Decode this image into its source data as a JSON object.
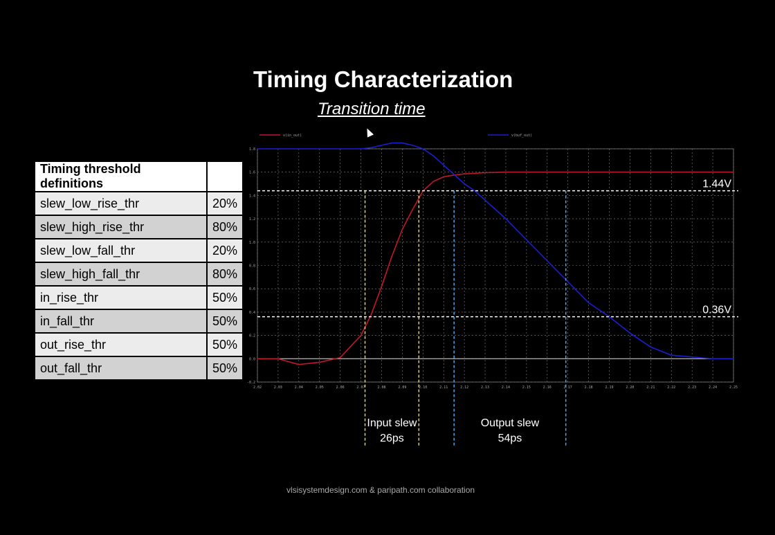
{
  "title": "Timing Characterization",
  "subtitle": "Transition time",
  "footer": "vlsisystemdesign.com & paripath.com collaboration",
  "threshold_table": {
    "header": "Timing threshold definitions",
    "rows": [
      {
        "name": "slew_low_rise_thr",
        "value": "20%"
      },
      {
        "name": "slew_high_rise_thr",
        "value": "80%"
      },
      {
        "name": "slew_low_fall_thr",
        "value": "20%"
      },
      {
        "name": "slew_high_fall_thr",
        "value": "80%"
      },
      {
        "name": "in_rise_thr",
        "value": "50%"
      },
      {
        "name": "in_fall_thr",
        "value": "50%"
      },
      {
        "name": "out_rise_thr",
        "value": "50%"
      },
      {
        "name": "out_fall_thr",
        "value": "50%"
      }
    ]
  },
  "chart_data": {
    "type": "line",
    "title": "",
    "xlabel": "",
    "ylabel": "",
    "xlim": [
      2.02,
      2.25
    ],
    "ylim": [
      -0.2,
      1.8
    ],
    "grid": true,
    "x_ticks": [
      "2.02",
      "2.03",
      "2.04",
      "2.05",
      "2.06",
      "2.07",
      "2.08",
      "2.09",
      "2.10",
      "2.11",
      "2.12",
      "2.13",
      "2.14",
      "2.15",
      "2.16",
      "2.17",
      "2.18",
      "2.19",
      "2.20",
      "2.21",
      "2.22",
      "2.23",
      "2.24",
      "2.25"
    ],
    "y_ticks": [
      "1.8",
      "1.6",
      "1.4",
      "1.2",
      "1.0",
      "0.8",
      "0.6",
      "0.4",
      "0.2",
      "0.0",
      "-0.2"
    ],
    "legend": [
      "v(in_out)",
      "v(buf_out)"
    ],
    "series": [
      {
        "name": "v(in_out)",
        "color": "#c0182a",
        "x": [
          2.02,
          2.03,
          2.04,
          2.05,
          2.06,
          2.07,
          2.075,
          2.08,
          2.085,
          2.09,
          2.095,
          2.1,
          2.105,
          2.11,
          2.115,
          2.12,
          2.125,
          2.13,
          2.14,
          2.15,
          2.16,
          2.17,
          2.18,
          2.19,
          2.2,
          2.22,
          2.25
        ],
        "y": [
          0.0,
          0.0,
          -0.05,
          -0.03,
          0.01,
          0.2,
          0.38,
          0.62,
          0.88,
          1.11,
          1.28,
          1.44,
          1.52,
          1.56,
          1.575,
          1.585,
          1.59,
          1.595,
          1.6,
          1.6,
          1.6,
          1.6,
          1.6,
          1.6,
          1.6,
          1.6,
          1.6
        ]
      },
      {
        "name": "v(buf_out)",
        "color": "#1a1fd0",
        "x": [
          2.02,
          2.04,
          2.05,
          2.06,
          2.07,
          2.075,
          2.08,
          2.085,
          2.09,
          2.095,
          2.1,
          2.105,
          2.11,
          2.115,
          2.12,
          2.125,
          2.13,
          2.14,
          2.15,
          2.16,
          2.17,
          2.18,
          2.19,
          2.2,
          2.21,
          2.22,
          2.24,
          2.25
        ],
        "y": [
          1.8,
          1.8,
          1.8,
          1.8,
          1.8,
          1.81,
          1.83,
          1.85,
          1.85,
          1.83,
          1.8,
          1.74,
          1.66,
          1.58,
          1.5,
          1.44,
          1.36,
          1.2,
          1.02,
          0.84,
          0.66,
          0.48,
          0.36,
          0.22,
          0.1,
          0.03,
          0.0,
          0.0
        ]
      }
    ],
    "hlines": [
      {
        "y": 1.44,
        "label": "1.44V",
        "color": "#ffffff"
      },
      {
        "y": 0.36,
        "label": "0.36V",
        "color": "#ffffff"
      }
    ],
    "vlines": [
      {
        "x": 2.072,
        "color": "#e8d060"
      },
      {
        "x": 2.098,
        "color": "#e8d060"
      },
      {
        "x": 2.115,
        "color": "#4aa8e8"
      },
      {
        "x": 2.169,
        "color": "#4aa8e8"
      }
    ],
    "annotations": [
      {
        "label": "Input slew",
        "value": "26ps",
        "x": 2.085
      },
      {
        "label": "Output slew",
        "value": "54ps",
        "x": 2.142
      }
    ]
  }
}
